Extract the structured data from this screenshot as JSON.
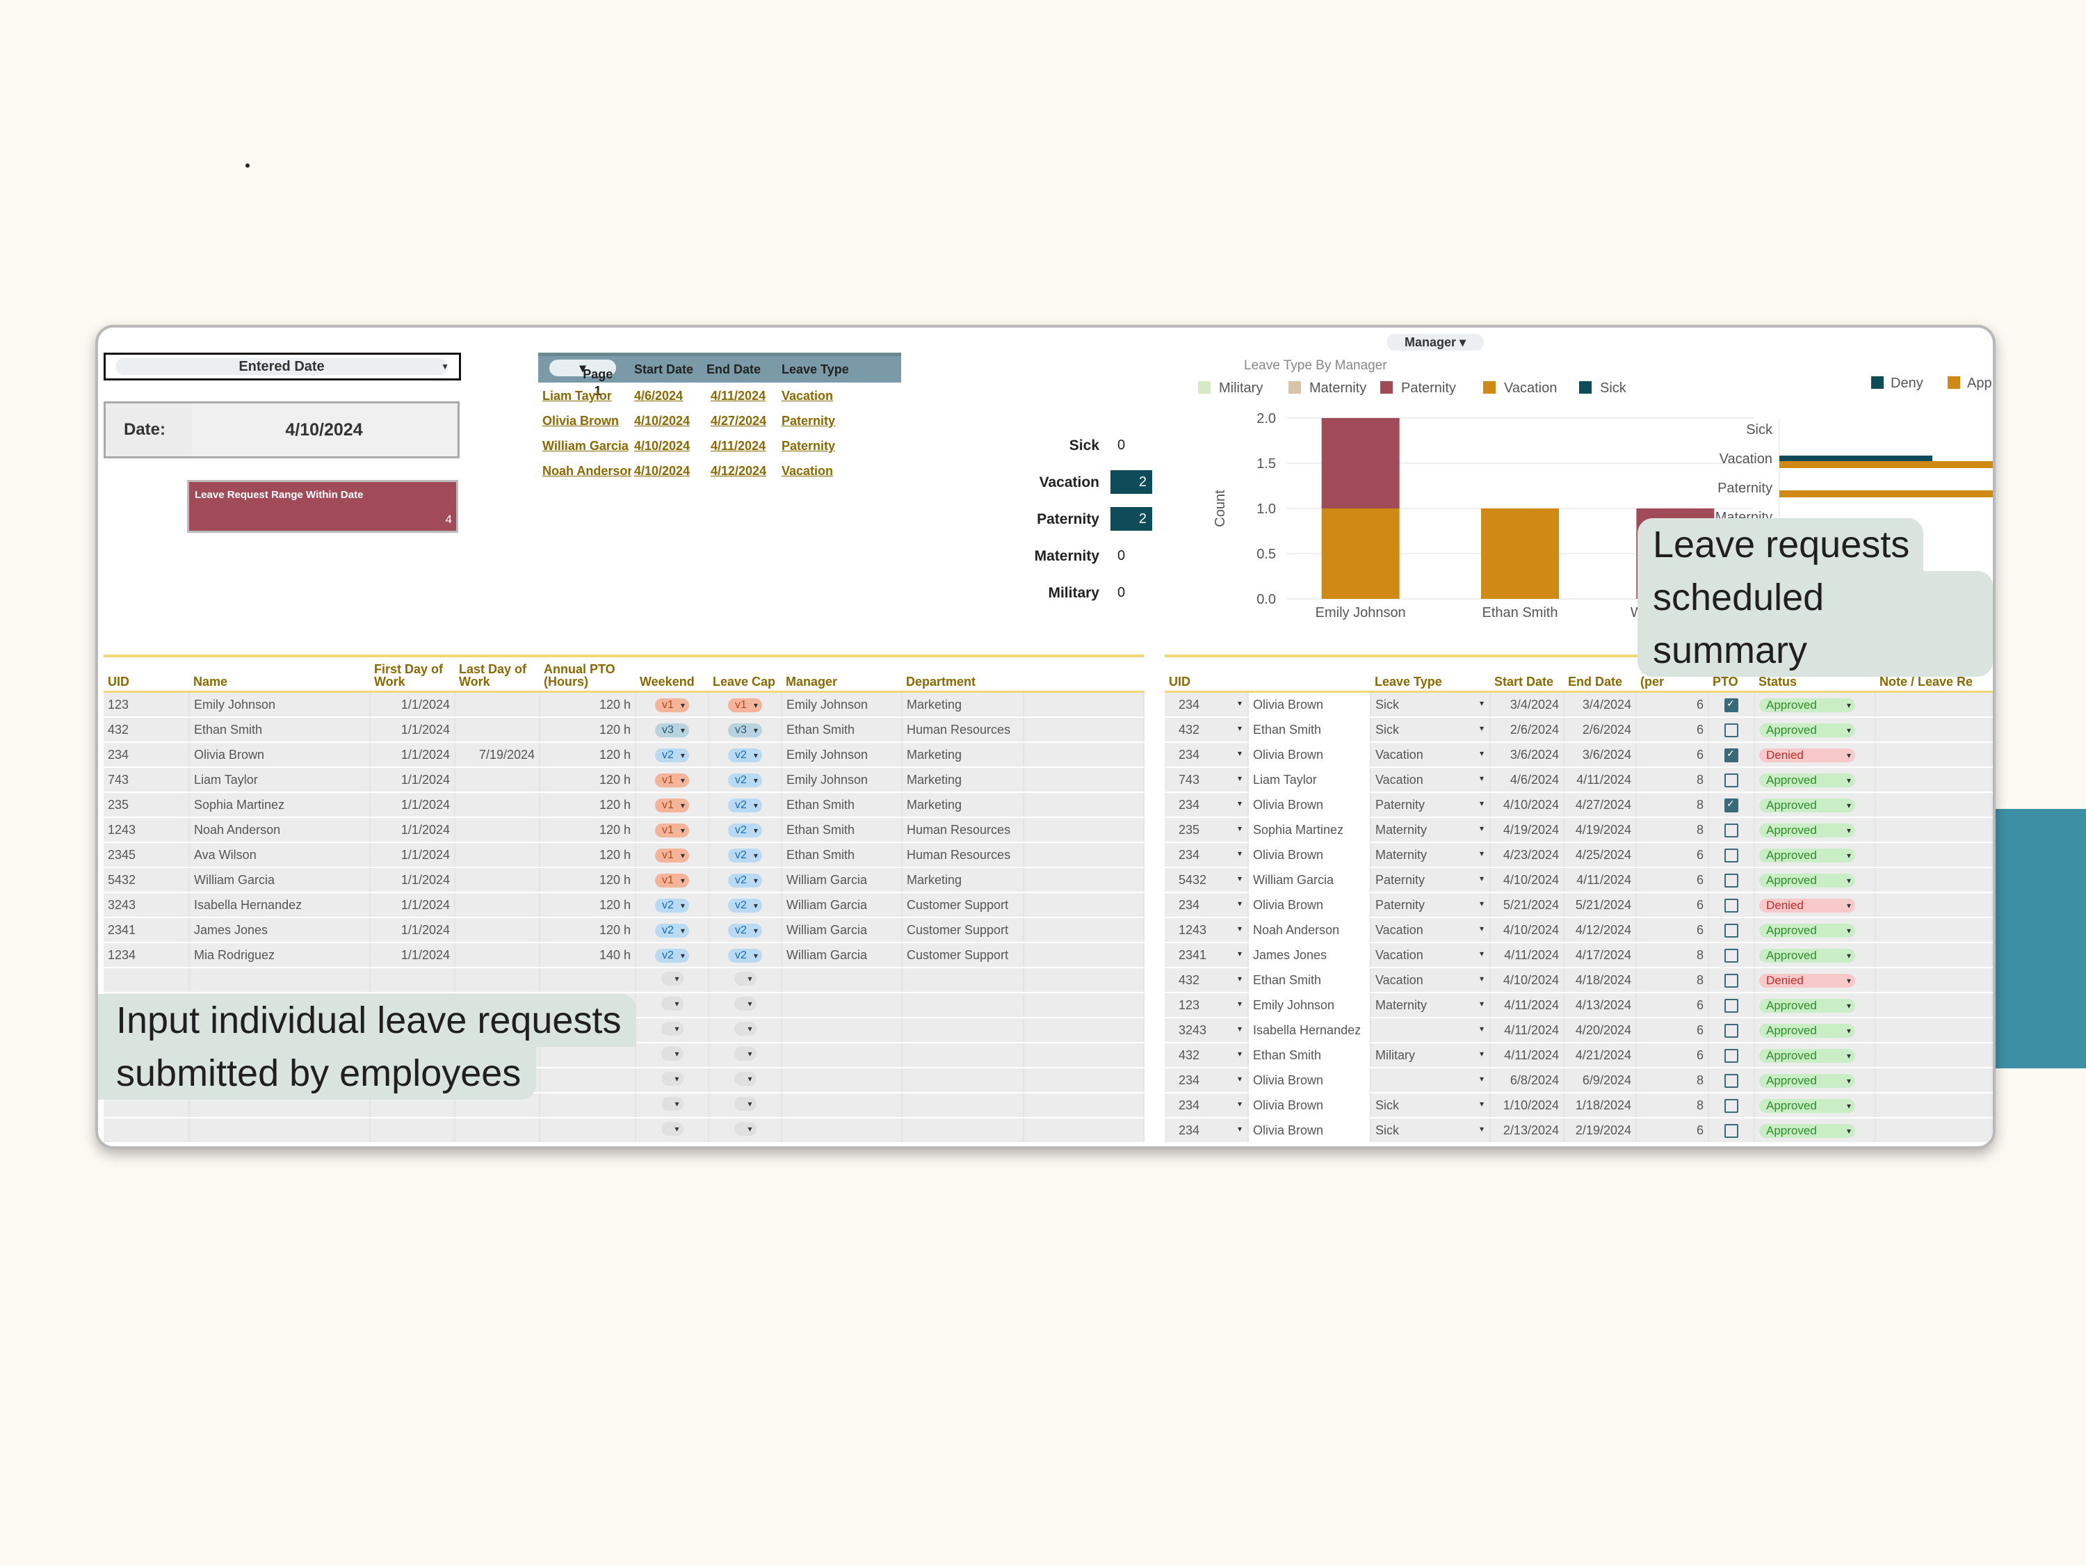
{
  "filter": {
    "entered_label": "Entered Date"
  },
  "date": {
    "label": "Date:",
    "value": "4/10/2024"
  },
  "range": {
    "label": "Leave Request Range Within Date",
    "count": "4"
  },
  "mini_list": {
    "page_label": "Page 1",
    "headers": [
      "Start Date",
      "End Date",
      "Leave Type"
    ],
    "rows": [
      {
        "name": "Liam Taylor",
        "start": "4/6/2024",
        "end": "4/11/2024",
        "type": "Vacation"
      },
      {
        "name": "Olivia Brown",
        "start": "4/10/2024",
        "end": "4/27/2024",
        "type": "Paternity"
      },
      {
        "name": "William Garcia",
        "start": "4/10/2024",
        "end": "4/11/2024",
        "type": "Paternity"
      },
      {
        "name": "Noah Anderson",
        "start": "4/10/2024",
        "end": "4/12/2024",
        "type": "Vacation"
      }
    ]
  },
  "counts": [
    {
      "label": "Sick",
      "value": "0",
      "highlight": false
    },
    {
      "label": "Vacation",
      "value": "2",
      "highlight": true
    },
    {
      "label": "Paternity",
      "value": "2",
      "highlight": true
    },
    {
      "label": "Maternity",
      "value": "0",
      "highlight": false
    },
    {
      "label": "Military",
      "value": "0",
      "highlight": false
    }
  ],
  "manager_filter": {
    "label": "Manager"
  },
  "chart_data": [
    {
      "type": "bar",
      "stacked": true,
      "title": "Leave Type By Manager",
      "xlabel": "",
      "ylabel": "Count",
      "categories": [
        "Emily Johnson",
        "Ethan Smith",
        "William Garcia"
      ],
      "ylim": [
        0,
        2.0
      ],
      "yticks": [
        "0.0",
        "0.5",
        "1.0",
        "1.5",
        "2.0"
      ],
      "legend_position": "top",
      "legend": [
        "Military",
        "Maternity",
        "Paternity",
        "Vacation",
        "Sick"
      ],
      "legend_colors": [
        "#d6e8c4",
        "#d9c2aa",
        "#a14b58",
        "#d08a14",
        "#0e4c5a"
      ],
      "series": [
        {
          "name": "Vacation",
          "color": "#d08a14",
          "values": [
            1,
            1,
            0
          ]
        },
        {
          "name": "Paternity",
          "color": "#a14b58",
          "values": [
            1,
            0,
            1
          ]
        }
      ]
    },
    {
      "type": "bar",
      "orientation": "horizontal",
      "categories": [
        "Sick",
        "Vacation",
        "Paternity",
        "Maternity"
      ],
      "legend_position": "top-right",
      "legend": [
        "Deny",
        "Approved"
      ],
      "legend_colors": [
        "#0e4c5a",
        "#d08a14"
      ],
      "xtick_visible": "1.5",
      "series": [
        {
          "name": "Deny",
          "color": "#0e4c5a",
          "values": [
            0,
            1,
            0,
            0
          ]
        },
        {
          "name": "Approved",
          "color": "#d08a14",
          "values": [
            0,
            1.6,
            1.6,
            0
          ]
        }
      ]
    }
  ],
  "employees": {
    "headers": [
      "UID",
      "Name",
      "First Day of Work",
      "Last Day of Work",
      "Annual PTO (Hours)",
      "Weekend",
      "Leave Cap",
      "Manager",
      "Department"
    ],
    "rows": [
      {
        "uid": "123",
        "name": "Emily Johnson",
        "first": "1/1/2024",
        "last": "",
        "pto": "120 h",
        "weekend": "v1",
        "cap": "v1",
        "manager": "Emily Johnson",
        "dept": "Marketing"
      },
      {
        "uid": "432",
        "name": "Ethan Smith",
        "first": "1/1/2024",
        "last": "",
        "pto": "120 h",
        "weekend": "v3",
        "cap": "v3",
        "manager": "Ethan Smith",
        "dept": "Human Resources"
      },
      {
        "uid": "234",
        "name": "Olivia Brown",
        "first": "1/1/2024",
        "last": "7/19/2024",
        "pto": "120 h",
        "weekend": "v2",
        "cap": "v2",
        "manager": "Emily Johnson",
        "dept": "Marketing"
      },
      {
        "uid": "743",
        "name": "Liam Taylor",
        "first": "1/1/2024",
        "last": "",
        "pto": "120 h",
        "weekend": "v1",
        "cap": "v2",
        "manager": "Emily Johnson",
        "dept": "Marketing"
      },
      {
        "uid": "235",
        "name": "Sophia Martinez",
        "first": "1/1/2024",
        "last": "",
        "pto": "120 h",
        "weekend": "v1",
        "cap": "v2",
        "manager": "Ethan Smith",
        "dept": "Marketing"
      },
      {
        "uid": "1243",
        "name": "Noah Anderson",
        "first": "1/1/2024",
        "last": "",
        "pto": "120 h",
        "weekend": "v1",
        "cap": "v2",
        "manager": "Ethan Smith",
        "dept": "Human Resources"
      },
      {
        "uid": "2345",
        "name": "Ava Wilson",
        "first": "1/1/2024",
        "last": "",
        "pto": "120 h",
        "weekend": "v1",
        "cap": "v2",
        "manager": "Ethan Smith",
        "dept": "Human Resources"
      },
      {
        "uid": "5432",
        "name": "William Garcia",
        "first": "1/1/2024",
        "last": "",
        "pto": "120 h",
        "weekend": "v1",
        "cap": "v2",
        "manager": "William Garcia",
        "dept": "Marketing"
      },
      {
        "uid": "3243",
        "name": "Isabella Hernandez",
        "first": "1/1/2024",
        "last": "",
        "pto": "120 h",
        "weekend": "v2",
        "cap": "v2",
        "manager": "William Garcia",
        "dept": "Customer Support"
      },
      {
        "uid": "2341",
        "name": "James Jones",
        "first": "1/1/2024",
        "last": "",
        "pto": "120 h",
        "weekend": "v2",
        "cap": "v2",
        "manager": "William Garcia",
        "dept": "Customer Support"
      },
      {
        "uid": "1234",
        "name": "Mia Rodriguez",
        "first": "1/1/2024",
        "last": "",
        "pto": "140 h",
        "weekend": "v2",
        "cap": "v2",
        "manager": "William Garcia",
        "dept": "Customer Support"
      }
    ],
    "empty_rows": 7
  },
  "requests": {
    "headers": [
      "UID",
      "",
      "Leave Type",
      "Start Date",
      "End Date",
      "Work Hour (per",
      "Apply PTO",
      "Status",
      "Note / Leave Re"
    ],
    "rows": [
      {
        "uid": "234",
        "name": "Olivia Brown",
        "type": "Sick",
        "start": "3/4/2024",
        "end": "3/4/2024",
        "hours": "6",
        "pto": true,
        "status": "Approved"
      },
      {
        "uid": "432",
        "name": "Ethan Smith",
        "type": "Sick",
        "start": "2/6/2024",
        "end": "2/6/2024",
        "hours": "6",
        "pto": false,
        "status": "Approved"
      },
      {
        "uid": "234",
        "name": "Olivia Brown",
        "type": "Vacation",
        "start": "3/6/2024",
        "end": "3/6/2024",
        "hours": "6",
        "pto": true,
        "status": "Denied"
      },
      {
        "uid": "743",
        "name": "Liam Taylor",
        "type": "Vacation",
        "start": "4/6/2024",
        "end": "4/11/2024",
        "hours": "8",
        "pto": false,
        "status": "Approved"
      },
      {
        "uid": "234",
        "name": "Olivia Brown",
        "type": "Paternity",
        "start": "4/10/2024",
        "end": "4/27/2024",
        "hours": "8",
        "pto": true,
        "status": "Approved"
      },
      {
        "uid": "235",
        "name": "Sophia Martinez",
        "type": "Maternity",
        "start": "4/19/2024",
        "end": "4/19/2024",
        "hours": "8",
        "pto": false,
        "status": "Approved"
      },
      {
        "uid": "234",
        "name": "Olivia Brown",
        "type": "Maternity",
        "start": "4/23/2024",
        "end": "4/25/2024",
        "hours": "6",
        "pto": false,
        "status": "Approved"
      },
      {
        "uid": "5432",
        "name": "William Garcia",
        "type": "Paternity",
        "start": "4/10/2024",
        "end": "4/11/2024",
        "hours": "6",
        "pto": false,
        "status": "Approved"
      },
      {
        "uid": "234",
        "name": "Olivia Brown",
        "type": "Paternity",
        "start": "5/21/2024",
        "end": "5/21/2024",
        "hours": "6",
        "pto": false,
        "status": "Denied"
      },
      {
        "uid": "1243",
        "name": "Noah Anderson",
        "type": "Vacation",
        "start": "4/10/2024",
        "end": "4/12/2024",
        "hours": "6",
        "pto": false,
        "status": "Approved"
      },
      {
        "uid": "2341",
        "name": "James Jones",
        "type": "Vacation",
        "start": "4/11/2024",
        "end": "4/17/2024",
        "hours": "8",
        "pto": false,
        "status": "Approved"
      },
      {
        "uid": "432",
        "name": "Ethan Smith",
        "type": "Vacation",
        "start": "4/10/2024",
        "end": "4/18/2024",
        "hours": "8",
        "pto": false,
        "status": "Denied"
      },
      {
        "uid": "123",
        "name": "Emily Johnson",
        "type": "Maternity",
        "start": "4/11/2024",
        "end": "4/13/2024",
        "hours": "6",
        "pto": false,
        "status": "Approved"
      },
      {
        "uid": "3243",
        "name": "Isabella Hernandez",
        "type": "",
        "start": "4/11/2024",
        "end": "4/20/2024",
        "hours": "6",
        "pto": false,
        "status": "Approved"
      },
      {
        "uid": "432",
        "name": "Ethan Smith",
        "type": "Military",
        "start": "4/11/2024",
        "end": "4/21/2024",
        "hours": "6",
        "pto": false,
        "status": "Approved"
      },
      {
        "uid": "234",
        "name": "Olivia Brown",
        "type": "",
        "start": "6/8/2024",
        "end": "6/9/2024",
        "hours": "8",
        "pto": false,
        "status": "Approved"
      },
      {
        "uid": "234",
        "name": "Olivia Brown",
        "type": "Sick",
        "start": "1/10/2024",
        "end": "1/18/2024",
        "hours": "8",
        "pto": false,
        "status": "Approved"
      },
      {
        "uid": "234",
        "name": "Olivia Brown",
        "type": "Sick",
        "start": "2/13/2024",
        "end": "2/19/2024",
        "hours": "6",
        "pto": false,
        "status": "Approved"
      }
    ]
  },
  "callouts": {
    "summary": [
      "Leave requests",
      "scheduled summary"
    ],
    "input": [
      "Input individual leave requests",
      "submitted by employees"
    ]
  }
}
